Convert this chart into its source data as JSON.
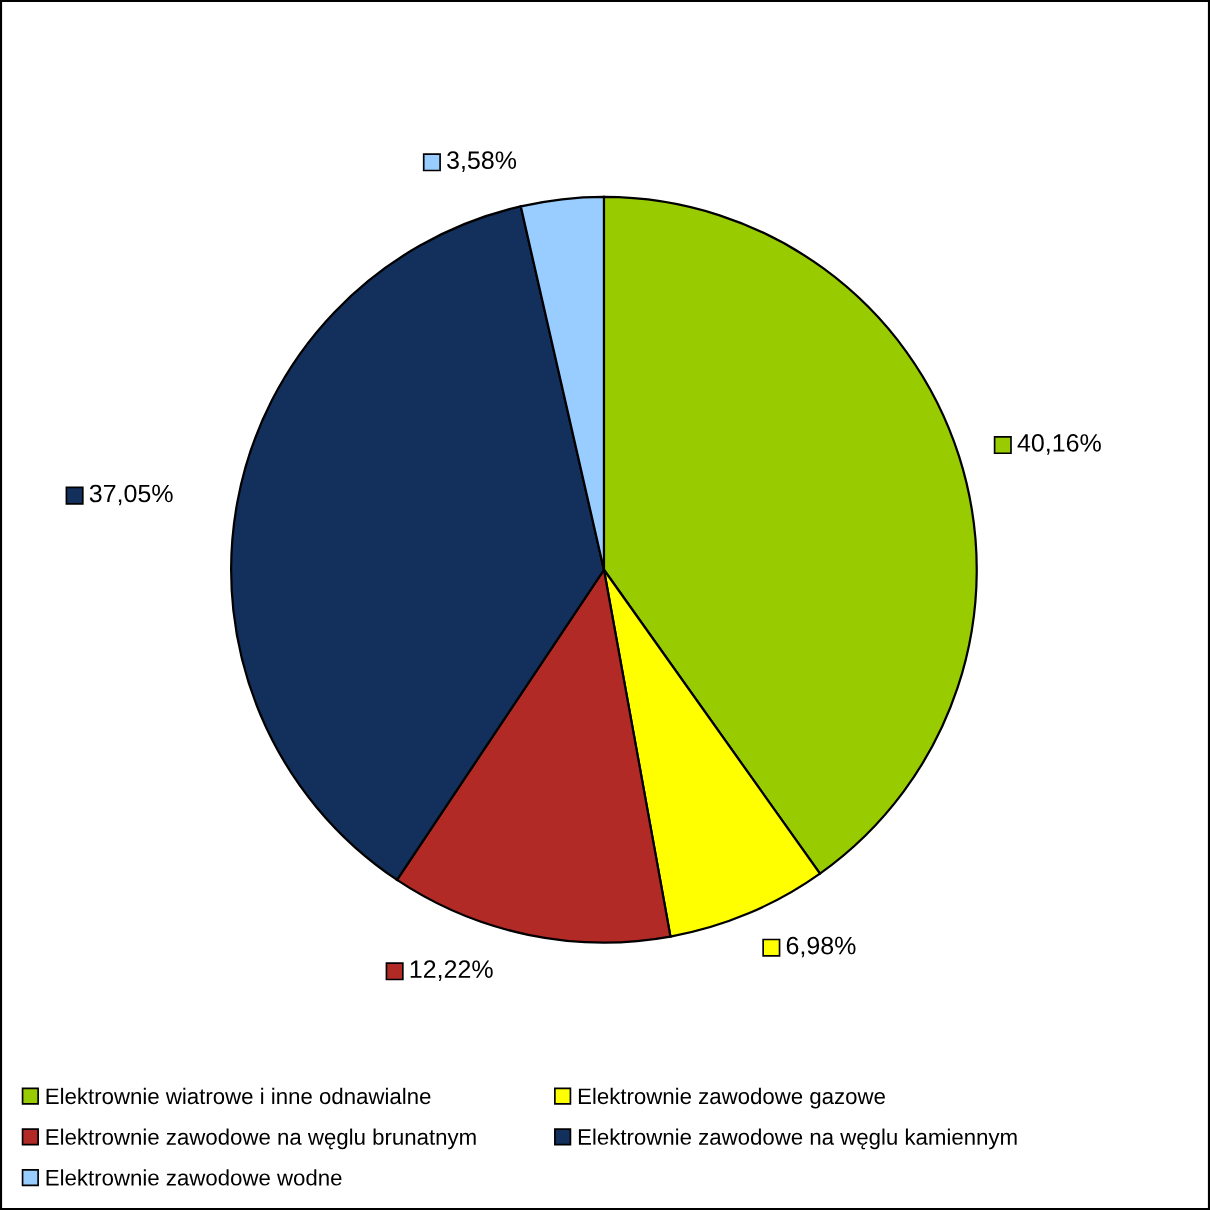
{
  "chart_data": {
    "type": "pie",
    "categories": [
      "Elektrownie wiatrowe i inne odnawialne",
      "Elektrownie zawodowe gazowe",
      "Elektrownie zawodowe na węglu brunatnym",
      "Elektrownie zawodowe na węglu kamiennym",
      "Elektrownie zawodowe wodne"
    ],
    "values": [
      40.16,
      6.98,
      12.22,
      37.05,
      3.58
    ],
    "value_labels": [
      "40,16%",
      "6,98%",
      "12,22%",
      "37,05%",
      "3,58%"
    ],
    "colors": [
      "#99cc00",
      "#ffff00",
      "#b22a26",
      "#132f5c",
      "#99ccff"
    ],
    "legend": "bottom"
  }
}
